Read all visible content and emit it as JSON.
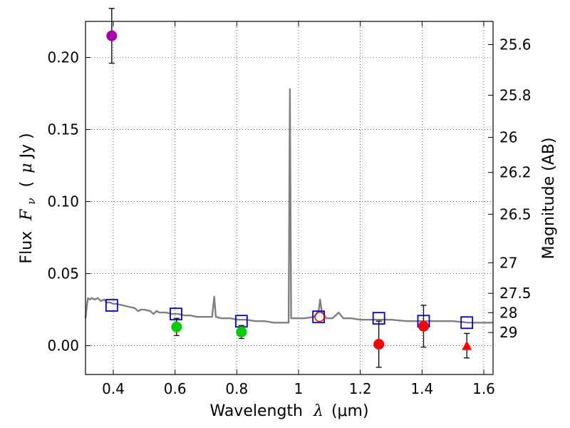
{
  "chart_data": {
    "type": "scatter",
    "xlabel_word": "Wavelength",
    "xlabel_symbol": "λ",
    "xlabel_unit": "(μm)",
    "ylabel_word": "Flux",
    "ylabel_symbol": "F",
    "ylabel_subscript": "ν",
    "ylabel_unit_open": "(",
    "ylabel_unit_mu": "μ",
    "ylabel_unit_rest": "Jy )",
    "y2label": "Magnitude (AB)",
    "xlim": [
      0.31,
      1.63
    ],
    "ylim": [
      -0.02,
      0.225
    ],
    "grid": true,
    "x_ticks": [
      {
        "value": 0.4,
        "label": "0.4"
      },
      {
        "value": 0.6,
        "label": "0.6"
      },
      {
        "value": 0.8,
        "label": "0.8"
      },
      {
        "value": 1.0,
        "label": "1"
      },
      {
        "value": 1.2,
        "label": "1.2"
      },
      {
        "value": 1.4,
        "label": "1.4"
      },
      {
        "value": 1.6,
        "label": "1.6"
      }
    ],
    "y_ticks": [
      {
        "value": 0.0,
        "label": "0.00"
      },
      {
        "value": 0.05,
        "label": "0.05"
      },
      {
        "value": 0.1,
        "label": "0.10"
      },
      {
        "value": 0.15,
        "label": "0.15"
      },
      {
        "value": 0.2,
        "label": "0.20"
      }
    ],
    "mag_ticks": [
      {
        "value": 25.6,
        "label": "25.6"
      },
      {
        "value": 25.8,
        "label": "25.8"
      },
      {
        "value": 26,
        "label": "26"
      },
      {
        "value": 26.2,
        "label": "26.2"
      },
      {
        "value": 26.5,
        "label": "26.5"
      },
      {
        "value": 27,
        "label": "27"
      },
      {
        "value": 27.5,
        "label": "27.5"
      },
      {
        "value": 28,
        "label": "28"
      },
      {
        "value": 29,
        "label": "29"
      }
    ],
    "series": [
      {
        "name": "model spectrum",
        "kind": "line",
        "color": "#808080",
        "points": [
          [
            0.31,
            0.019
          ],
          [
            0.315,
            0.029
          ],
          [
            0.318,
            0.033
          ],
          [
            0.325,
            0.032
          ],
          [
            0.33,
            0.033
          ],
          [
            0.34,
            0.032
          ],
          [
            0.35,
            0.033
          ],
          [
            0.36,
            0.031
          ],
          [
            0.37,
            0.032
          ],
          [
            0.38,
            0.03
          ],
          [
            0.39,
            0.03
          ],
          [
            0.4,
            0.029
          ],
          [
            0.41,
            0.029
          ],
          [
            0.43,
            0.028
          ],
          [
            0.45,
            0.027
          ],
          [
            0.47,
            0.026
          ],
          [
            0.48,
            0.024
          ],
          [
            0.49,
            0.025
          ],
          [
            0.5,
            0.025
          ],
          [
            0.52,
            0.024
          ],
          [
            0.53,
            0.022
          ],
          [
            0.54,
            0.024
          ],
          [
            0.55,
            0.023
          ],
          [
            0.57,
            0.023
          ],
          [
            0.59,
            0.022
          ],
          [
            0.61,
            0.022
          ],
          [
            0.63,
            0.021
          ],
          [
            0.65,
            0.021
          ],
          [
            0.67,
            0.02
          ],
          [
            0.69,
            0.02
          ],
          [
            0.71,
            0.02
          ],
          [
            0.72,
            0.02
          ],
          [
            0.727,
            0.034
          ],
          [
            0.732,
            0.02
          ],
          [
            0.75,
            0.019
          ],
          [
            0.78,
            0.019
          ],
          [
            0.8,
            0.018
          ],
          [
            0.83,
            0.018
          ],
          [
            0.86,
            0.017
          ],
          [
            0.89,
            0.017
          ],
          [
            0.92,
            0.016
          ],
          [
            0.95,
            0.016
          ],
          [
            0.968,
            0.016
          ],
          [
            0.972,
            0.178
          ],
          [
            0.976,
            0.019
          ],
          [
            0.99,
            0.019
          ],
          [
            1.02,
            0.019
          ],
          [
            1.05,
            0.02
          ],
          [
            1.065,
            0.024
          ],
          [
            1.07,
            0.032
          ],
          [
            1.075,
            0.024
          ],
          [
            1.09,
            0.019
          ],
          [
            1.11,
            0.019
          ],
          [
            1.13,
            0.023
          ],
          [
            1.145,
            0.019
          ],
          [
            1.17,
            0.019
          ],
          [
            1.2,
            0.018
          ],
          [
            1.25,
            0.018
          ],
          [
            1.3,
            0.018
          ],
          [
            1.35,
            0.017
          ],
          [
            1.4,
            0.017
          ],
          [
            1.45,
            0.017
          ],
          [
            1.5,
            0.017
          ],
          [
            1.55,
            0.016
          ],
          [
            1.6,
            0.016
          ],
          [
            1.63,
            0.016
          ]
        ]
      },
      {
        "name": "model photometry",
        "kind": "open-square",
        "color": "#0000cc",
        "points": [
          [
            0.395,
            0.028
          ],
          [
            0.603,
            0.022
          ],
          [
            0.815,
            0.017
          ],
          [
            1.065,
            0.02
          ],
          [
            1.26,
            0.019
          ],
          [
            1.405,
            0.017
          ],
          [
            1.545,
            0.016
          ]
        ]
      },
      {
        "name": "observed (violet)",
        "kind": "circle",
        "color": "#aa00aa",
        "points": [
          [
            0.395,
            0.215,
            0.019
          ]
        ]
      },
      {
        "name": "observed (green)",
        "kind": "circle",
        "color": "#00cc00",
        "points": [
          [
            0.605,
            0.013,
            0.006
          ],
          [
            0.815,
            0.0095,
            0.0045
          ]
        ]
      },
      {
        "name": "observed (red)",
        "kind": "circle",
        "color": "#ff0000",
        "points": [
          [
            1.26,
            0.001,
            0.016
          ],
          [
            1.405,
            0.0135,
            0.0145
          ]
        ]
      },
      {
        "name": "upper limit",
        "kind": "triangle",
        "color": "#ff0000",
        "points": [
          [
            1.545,
            0.0,
            0.0085
          ]
        ]
      },
      {
        "name": "observed (red open)",
        "kind": "open-circle",
        "color": "#ff0000",
        "points": [
          [
            1.068,
            0.02
          ]
        ]
      }
    ]
  }
}
